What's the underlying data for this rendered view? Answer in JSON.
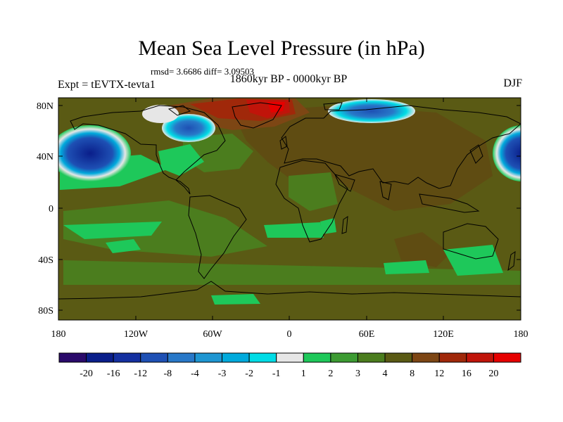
{
  "title": "Mean Sea Level Pressure (in hPa)",
  "stats": "rmsd= 3.6686 diff= 3.09503",
  "period": "1860kyr BP - 0000kyr BP",
  "experiment": "Expt = tEVTX-tevta1",
  "season": "DJF",
  "lat_labels": [
    "80N",
    "40N",
    "0",
    "40S",
    "80S"
  ],
  "lon_labels": [
    "180",
    "120W",
    "60W",
    "0",
    "60E",
    "120E",
    "180"
  ],
  "colorbar": {
    "labels": [
      "-20",
      "-16",
      "-12",
      "-8",
      "-4",
      "-3",
      "-2",
      "-1",
      "1",
      "2",
      "3",
      "4",
      "8",
      "12",
      "16",
      "20"
    ],
    "colors": [
      "#2a0a6a",
      "#0a1e8a",
      "#1430a0",
      "#1e50b4",
      "#2878c8",
      "#1e96d2",
      "#00aadc",
      "#00dce6",
      "#e6e6e6",
      "#1ec85a",
      "#3c9b32",
      "#4b7d1e",
      "#5a5a14",
      "#7d4614",
      "#a0280a",
      "#c0140a",
      "#e60000"
    ]
  },
  "colors": {
    "background_field": "#5a5a14",
    "land_field": "#5f4c12",
    "coastline": "#000000"
  }
}
